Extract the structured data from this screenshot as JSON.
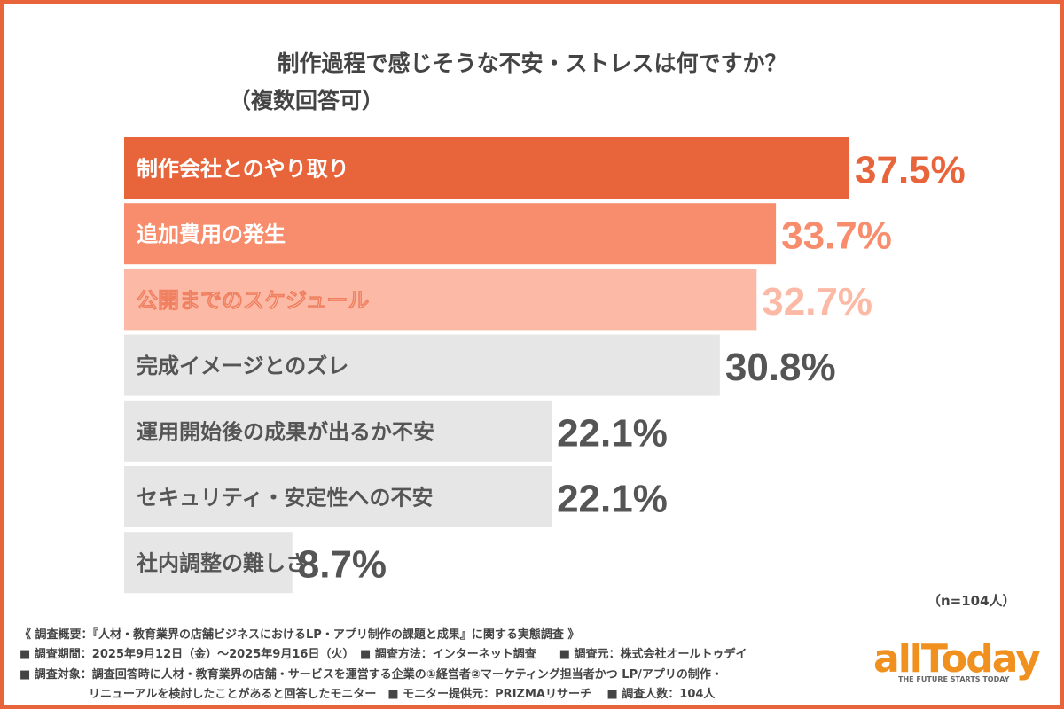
{
  "title": "制作過程で感じそうな不安・ストレスは何ですか？",
  "subtitle": "（複数回答可）",
  "sample": "（n=104人）",
  "chart_data": {
    "type": "bar",
    "orientation": "horizontal",
    "title": "制作過程で感じそうな不安・ストレスは何ですか？",
    "categories": [
      "制作会社とのやり取り",
      "追加費用の発生",
      "公開までのスケジュール",
      "完成イメージとのズレ",
      "運用開始後の成果が出るか不安",
      "セキュリティ・安定性への不安",
      "社内調整の難しさ"
    ],
    "values": [
      37.5,
      33.7,
      32.7,
      30.8,
      22.1,
      22.1,
      8.7
    ],
    "value_labels": [
      "37.5%",
      "33.7%",
      "32.7%",
      "30.8%",
      "22.1%",
      "22.1%",
      "8.7%"
    ],
    "unit": "%",
    "xlim": [
      0,
      37.5
    ],
    "grid": false,
    "colors": [
      "#e8643a",
      "#f78d6c",
      "#fcbaa6",
      "#e6e6e6",
      "#e6e6e6",
      "#e6e6e6",
      "#e6e6e6"
    ],
    "value_colors": [
      "#e8643a",
      "#f78d6c",
      "#fcbaa6",
      "#555555",
      "#555555",
      "#555555",
      "#555555"
    ],
    "label_colors": [
      "#ffffff",
      "#ffffff",
      "#ffffff",
      "#555555",
      "#555555",
      "#555555",
      "#555555"
    ]
  },
  "footer": {
    "line1": "《 調査概要：『人材・教育業界の店舗ビジネスにおけるLP・アプリ制作の課題と成果』に関する実態調査 》",
    "line2": "■ 調査期間：2025年9月12日（金）～2025年9月16日（火）　■ 調査方法：インターネット調査　　■ 調査元：株式会社オールトゥデイ",
    "line3": "■ 調査対象：調査回答時に人材・教育業界の店舗・サービスを運営する企業の①経営者②マーケティング担当者かつ LP/アプリの制作・",
    "line4": "　　　　　　リニューアルを検討したことがあると回答したモニター　■ モニター提供元：PRIZMAリサーチ　 ■ 調査人数：104人"
  },
  "logo": {
    "name": "allToday",
    "tagline": "THE FUTURE STARTS TODAY"
  },
  "colors": {
    "accent": "#e8643a",
    "text": "#444444"
  }
}
